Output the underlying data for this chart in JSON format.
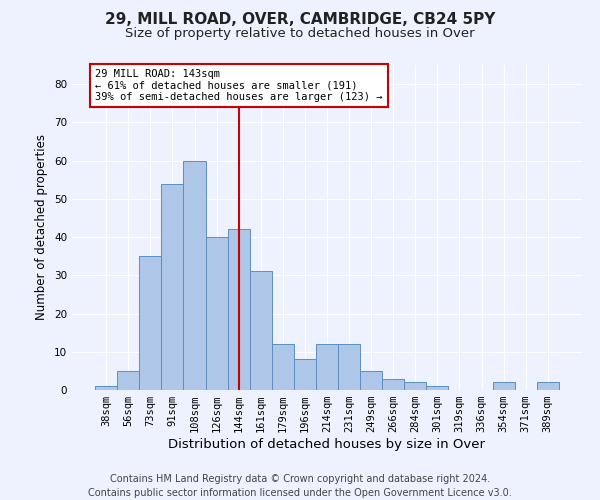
{
  "title_line1": "29, MILL ROAD, OVER, CAMBRIDGE, CB24 5PY",
  "title_line2": "Size of property relative to detached houses in Over",
  "xlabel": "Distribution of detached houses by size in Over",
  "ylabel": "Number of detached properties",
  "categories": [
    "38sqm",
    "56sqm",
    "73sqm",
    "91sqm",
    "108sqm",
    "126sqm",
    "144sqm",
    "161sqm",
    "179sqm",
    "196sqm",
    "214sqm",
    "231sqm",
    "249sqm",
    "266sqm",
    "284sqm",
    "301sqm",
    "319sqm",
    "336sqm",
    "354sqm",
    "371sqm",
    "389sqm"
  ],
  "values": [
    1,
    5,
    35,
    54,
    60,
    40,
    42,
    31,
    12,
    8,
    12,
    12,
    5,
    3,
    2,
    1,
    0,
    0,
    2,
    0,
    2
  ],
  "bar_color": "#aec6e8",
  "bar_edge_color": "#5a8fc2",
  "vline_x": 6,
  "vline_color": "#cc0000",
  "ylim": [
    0,
    85
  ],
  "yticks": [
    0,
    10,
    20,
    30,
    40,
    50,
    60,
    70,
    80
  ],
  "annotation_text": "29 MILL ROAD: 143sqm\n← 61% of detached houses are smaller (191)\n39% of semi-detached houses are larger (123) →",
  "annotation_box_color": "#ffffff",
  "annotation_box_edge_color": "#cc0000",
  "footer_line1": "Contains HM Land Registry data © Crown copyright and database right 2024.",
  "footer_line2": "Contains public sector information licensed under the Open Government Licence v3.0.",
  "background_color": "#eef2ff",
  "grid_color": "#ffffff",
  "title1_fontsize": 11,
  "title2_fontsize": 9.5,
  "xlabel_fontsize": 9.5,
  "ylabel_fontsize": 8.5,
  "tick_fontsize": 7.5,
  "footer_fontsize": 7.0,
  "annot_fontsize": 7.5
}
